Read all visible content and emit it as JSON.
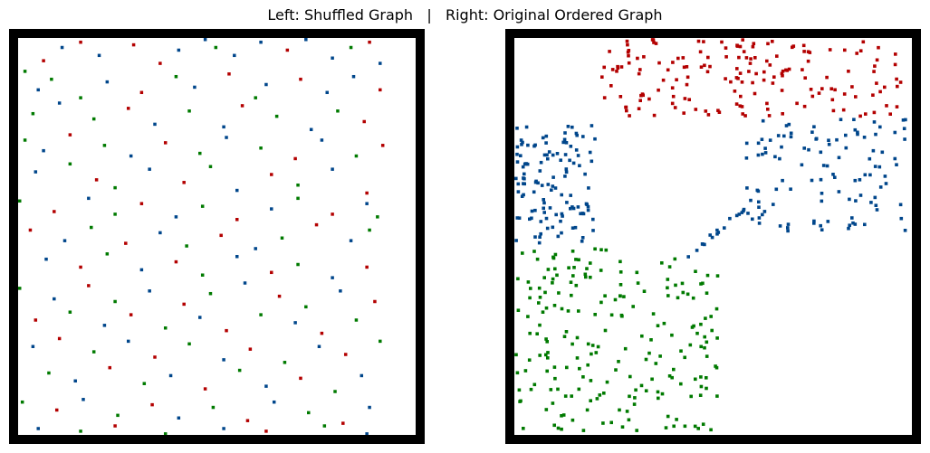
{
  "title": "Left: Shuffled Graph   |   Right: Original Ordered Graph",
  "colors": {
    "community_1": "#b30000",
    "community_2": "#00468b",
    "community_3": "#007a00",
    "frame": "#000000",
    "background": "#ffffff"
  },
  "chart_data": [
    {
      "type": "heatmap",
      "panel": "left",
      "description_note": "",
      "n_nodes": 150,
      "grid": false,
      "points": [
        [
          3,
          8,
          0
        ],
        [
          5,
          3,
          1
        ],
        [
          7,
          1,
          0
        ],
        [
          10,
          6,
          1
        ],
        [
          14,
          2,
          0
        ],
        [
          17,
          9,
          0
        ],
        [
          20,
          4,
          1
        ],
        [
          23,
          0,
          1
        ],
        [
          24,
          3,
          2
        ],
        [
          27,
          6,
          1
        ],
        [
          30,
          1,
          1
        ],
        [
          33,
          4,
          0
        ],
        [
          36,
          0,
          1
        ],
        [
          39,
          7,
          1
        ],
        [
          41,
          3,
          2
        ],
        [
          44,
          1,
          0
        ],
        [
          45,
          9,
          1
        ],
        [
          0,
          12,
          2
        ],
        [
          4,
          15,
          2
        ],
        [
          2,
          19,
          1
        ],
        [
          7,
          22,
          2
        ],
        [
          11,
          16,
          1
        ],
        [
          15,
          20,
          0
        ],
        [
          19,
          14,
          2
        ],
        [
          22,
          18,
          1
        ],
        [
          26,
          13,
          0
        ],
        [
          29,
          22,
          2
        ],
        [
          31,
          17,
          1
        ],
        [
          35,
          15,
          0
        ],
        [
          38,
          20,
          1
        ],
        [
          42,
          14,
          1
        ],
        [
          45,
          19,
          0
        ],
        [
          1,
          28,
          2
        ],
        [
          5,
          24,
          1
        ],
        [
          9,
          30,
          2
        ],
        [
          13,
          26,
          0
        ],
        [
          17,
          32,
          1
        ],
        [
          21,
          27,
          2
        ],
        [
          25,
          33,
          1
        ],
        [
          28,
          25,
          0
        ],
        [
          32,
          29,
          2
        ],
        [
          36,
          34,
          1
        ],
        [
          40,
          27,
          2
        ],
        [
          43,
          31,
          0
        ],
        [
          0,
          38,
          2
        ],
        [
          3,
          42,
          1
        ],
        [
          6,
          36,
          0
        ],
        [
          10,
          40,
          2
        ],
        [
          14,
          44,
          1
        ],
        [
          18,
          39,
          0
        ],
        [
          22,
          43,
          2
        ],
        [
          26,
          37,
          1
        ],
        [
          30,
          41,
          2
        ],
        [
          34,
          45,
          0
        ],
        [
          38,
          38,
          1
        ],
        [
          42,
          44,
          2
        ],
        [
          45,
          40,
          0
        ],
        [
          2,
          50,
          1
        ],
        [
          6,
          47,
          2
        ],
        [
          9,
          53,
          0
        ],
        [
          12,
          56,
          2
        ],
        [
          16,
          49,
          1
        ],
        [
          20,
          54,
          0
        ],
        [
          24,
          48,
          2
        ],
        [
          27,
          57,
          1
        ],
        [
          31,
          51,
          0
        ],
        [
          35,
          55,
          2
        ],
        [
          39,
          49,
          1
        ],
        [
          43,
          58,
          0
        ],
        [
          0,
          61,
          2
        ],
        [
          4,
          65,
          0
        ],
        [
          8,
          60,
          1
        ],
        [
          12,
          66,
          2
        ],
        [
          15,
          62,
          0
        ],
        [
          19,
          67,
          1
        ],
        [
          23,
          63,
          2
        ],
        [
          27,
          68,
          0
        ],
        [
          31,
          64,
          1
        ],
        [
          35,
          60,
          2
        ],
        [
          39,
          66,
          0
        ],
        [
          43,
          62,
          1
        ],
        [
          45,
          67,
          2
        ],
        [
          1,
          72,
          0
        ],
        [
          5,
          76,
          1
        ],
        [
          9,
          71,
          2
        ],
        [
          13,
          77,
          0
        ],
        [
          17,
          73,
          1
        ],
        [
          21,
          78,
          2
        ],
        [
          25,
          74,
          0
        ],
        [
          29,
          79,
          1
        ],
        [
          33,
          75,
          2
        ],
        [
          37,
          70,
          0
        ],
        [
          41,
          76,
          1
        ],
        [
          44,
          72,
          2
        ],
        [
          3,
          83,
          1
        ],
        [
          7,
          86,
          0
        ],
        [
          11,
          81,
          2
        ],
        [
          15,
          87,
          1
        ],
        [
          19,
          84,
          0
        ],
        [
          23,
          89,
          2
        ],
        [
          27,
          82,
          1
        ],
        [
          31,
          88,
          0
        ],
        [
          35,
          85,
          2
        ],
        [
          39,
          90,
          1
        ],
        [
          43,
          86,
          0
        ],
        [
          0,
          94,
          2
        ],
        [
          4,
          98,
          1
        ],
        [
          8,
          93,
          0
        ],
        [
          12,
          99,
          2
        ],
        [
          16,
          95,
          1
        ],
        [
          20,
          100,
          0
        ],
        [
          24,
          96,
          2
        ],
        [
          28,
          92,
          1
        ],
        [
          32,
          97,
          0
        ],
        [
          36,
          101,
          2
        ],
        [
          40,
          95,
          1
        ],
        [
          44,
          99,
          0
        ],
        [
          2,
          106,
          0
        ],
        [
          6,
          103,
          2
        ],
        [
          10,
          108,
          1
        ],
        [
          14,
          104,
          0
        ],
        [
          18,
          109,
          2
        ],
        [
          22,
          105,
          1
        ],
        [
          26,
          110,
          0
        ],
        [
          30,
          104,
          2
        ],
        [
          34,
          107,
          1
        ],
        [
          38,
          111,
          0
        ],
        [
          42,
          106,
          2
        ],
        [
          1,
          116,
          1
        ],
        [
          5,
          113,
          0
        ],
        [
          9,
          118,
          2
        ],
        [
          13,
          114,
          1
        ],
        [
          17,
          120,
          0
        ],
        [
          21,
          115,
          2
        ],
        [
          25,
          121,
          1
        ],
        [
          29,
          117,
          0
        ],
        [
          33,
          122,
          2
        ],
        [
          37,
          116,
          1
        ],
        [
          41,
          119,
          0
        ],
        [
          45,
          114,
          2
        ],
        [
          3,
          126,
          2
        ],
        [
          7,
          129,
          1
        ],
        [
          11,
          124,
          0
        ],
        [
          15,
          130,
          2
        ],
        [
          19,
          127,
          1
        ],
        [
          23,
          132,
          0
        ],
        [
          27,
          125,
          2
        ],
        [
          31,
          131,
          1
        ],
        [
          35,
          128,
          0
        ],
        [
          39,
          133,
          2
        ],
        [
          43,
          127,
          1
        ],
        [
          0,
          137,
          2
        ],
        [
          4,
          140,
          0
        ],
        [
          8,
          136,
          1
        ],
        [
          12,
          142,
          2
        ],
        [
          16,
          138,
          0
        ],
        [
          20,
          143,
          1
        ],
        [
          24,
          139,
          2
        ],
        [
          28,
          144,
          0
        ],
        [
          32,
          137,
          1
        ],
        [
          36,
          141,
          2
        ],
        [
          40,
          145,
          0
        ],
        [
          44,
          139,
          1
        ],
        [
          2,
          147,
          1
        ],
        [
          7,
          148,
          2
        ],
        [
          12,
          146,
          0
        ],
        [
          18,
          149,
          2
        ],
        [
          25,
          147,
          1
        ],
        [
          31,
          148,
          0
        ],
        [
          38,
          146,
          2
        ],
        [
          43,
          149,
          1
        ]
      ]
    },
    {
      "type": "heatmap",
      "panel": "right",
      "n_nodes": 150,
      "grid": false,
      "communities": [
        {
          "range": [
            0,
            30
          ],
          "color": "#00468b"
        },
        {
          "range": [
            30,
            140
          ],
          "color": "#b30000"
        },
        {
          "range": [
            0,
            75
          ],
          "color": "#007a00"
        }
      ]
    }
  ]
}
